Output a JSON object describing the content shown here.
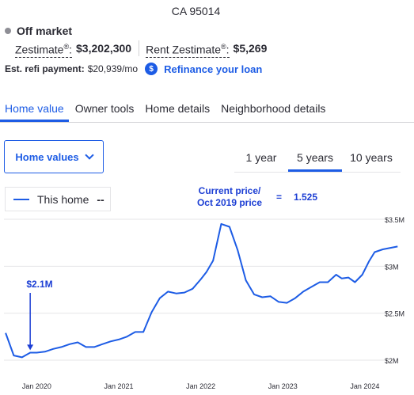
{
  "address": "CA 95014",
  "status": "Off market",
  "zestimate": {
    "label": "Zestimate",
    "value": "$3,202,300"
  },
  "rent_zestimate": {
    "label": "Rent Zestimate",
    "value": "$5,269"
  },
  "refi": {
    "label": "Est. refi payment:",
    "value": "$20,939/mo",
    "icon": "$",
    "link": "Refinance your loan"
  },
  "tabs": [
    {
      "label": "Home value",
      "active": true
    },
    {
      "label": "Owner tools",
      "active": false
    },
    {
      "label": "Home details",
      "active": false
    },
    {
      "label": "Neighborhood details",
      "active": false
    }
  ],
  "home_values_dropdown": "Home values",
  "range_tabs": [
    {
      "label": "1 year",
      "active": false
    },
    {
      "label": "5 years",
      "active": true
    },
    {
      "label": "10 years",
      "active": false
    }
  ],
  "legend": {
    "series_name": "This home",
    "value": "--"
  },
  "annotations": {
    "current_price_label_line1": "Current price/",
    "current_price_label_line2": "Oct 2019 price",
    "equals": "=",
    "ratio": "1.525",
    "start_price": "$2.1M"
  },
  "colors": {
    "accent": "#1d5ce5",
    "annotation": "#1d3fd4",
    "grid": "#e4e4e7"
  },
  "chart_data": {
    "type": "line",
    "ylim": [
      2.0,
      3.5
    ],
    "y_ticks": [
      2.0,
      2.5,
      3.0,
      3.5
    ],
    "y_tick_labels": [
      "$2M",
      "$2.5M",
      "$3M",
      "$3.5M"
    ],
    "x_ticks": [
      2020,
      2021,
      2022,
      2023,
      2024
    ],
    "x_tick_labels": [
      "Jan 2020",
      "Jan 2021",
      "Jan 2022",
      "Jan 2023",
      "Jan 2024"
    ],
    "grid": true,
    "series": [
      {
        "name": "This home",
        "x": [
          2019.62,
          2019.72,
          2019.82,
          2019.92,
          2020.0,
          2020.1,
          2020.2,
          2020.3,
          2020.4,
          2020.5,
          2020.6,
          2020.7,
          2020.8,
          2020.9,
          2021.0,
          2021.1,
          2021.2,
          2021.3,
          2021.4,
          2021.5,
          2021.6,
          2021.7,
          2021.8,
          2021.9,
          2022.0,
          2022.07,
          2022.15,
          2022.25,
          2022.35,
          2022.45,
          2022.55,
          2022.65,
          2022.75,
          2022.85,
          2022.95,
          2023.05,
          2023.15,
          2023.25,
          2023.35,
          2023.45,
          2023.55,
          2023.65,
          2023.72,
          2023.8,
          2023.88,
          2023.97,
          2024.05,
          2024.12,
          2024.22,
          2024.4
        ],
        "values": [
          2.29,
          2.05,
          2.03,
          2.08,
          2.08,
          2.09,
          2.12,
          2.14,
          2.17,
          2.19,
          2.14,
          2.14,
          2.17,
          2.2,
          2.22,
          2.25,
          2.3,
          2.3,
          2.51,
          2.66,
          2.73,
          2.71,
          2.72,
          2.76,
          2.86,
          2.94,
          3.06,
          3.45,
          3.42,
          3.17,
          2.85,
          2.7,
          2.67,
          2.68,
          2.62,
          2.61,
          2.66,
          2.73,
          2.78,
          2.83,
          2.83,
          2.91,
          2.87,
          2.88,
          2.83,
          2.91,
          3.05,
          3.15,
          3.18,
          3.21
        ]
      }
    ]
  }
}
